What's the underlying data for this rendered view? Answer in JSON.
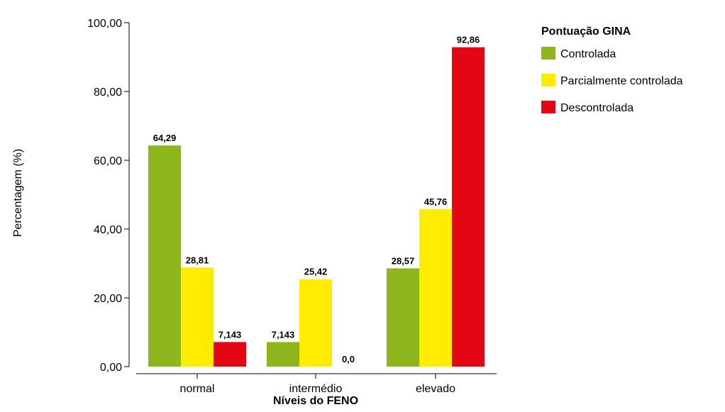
{
  "chart_data": {
    "type": "bar",
    "categories": [
      "normal",
      "intermédio",
      "elevado"
    ],
    "series": [
      {
        "name": "Controlada",
        "color": "#8db51c",
        "values": [
          64.29,
          7.143,
          28.57
        ],
        "labels": [
          "64,29",
          "7,143",
          "28,57"
        ]
      },
      {
        "name": "Parcialmente controlada",
        "color": "#ffec00",
        "values": [
          28.81,
          25.42,
          45.76
        ],
        "labels": [
          "28,81",
          "25,42",
          "45,76"
        ]
      },
      {
        "name": "Descontrolada",
        "color": "#e30613",
        "values": [
          7.143,
          0.0,
          92.86
        ],
        "labels": [
          "7,143",
          "0,0",
          "92,86"
        ]
      }
    ],
    "xlabel": "Níveis do FENO",
    "ylabel": "Percentagem (%)",
    "ylim": [
      0,
      100
    ],
    "yticks": [
      0,
      20,
      40,
      60,
      80,
      100
    ],
    "ytick_labels": [
      "0,00",
      "20,00",
      "40,00",
      "60,00",
      "80,00",
      "100,00"
    ],
    "legend_title": "Pontuação GINA",
    "legend_position": "right",
    "grid": false
  }
}
